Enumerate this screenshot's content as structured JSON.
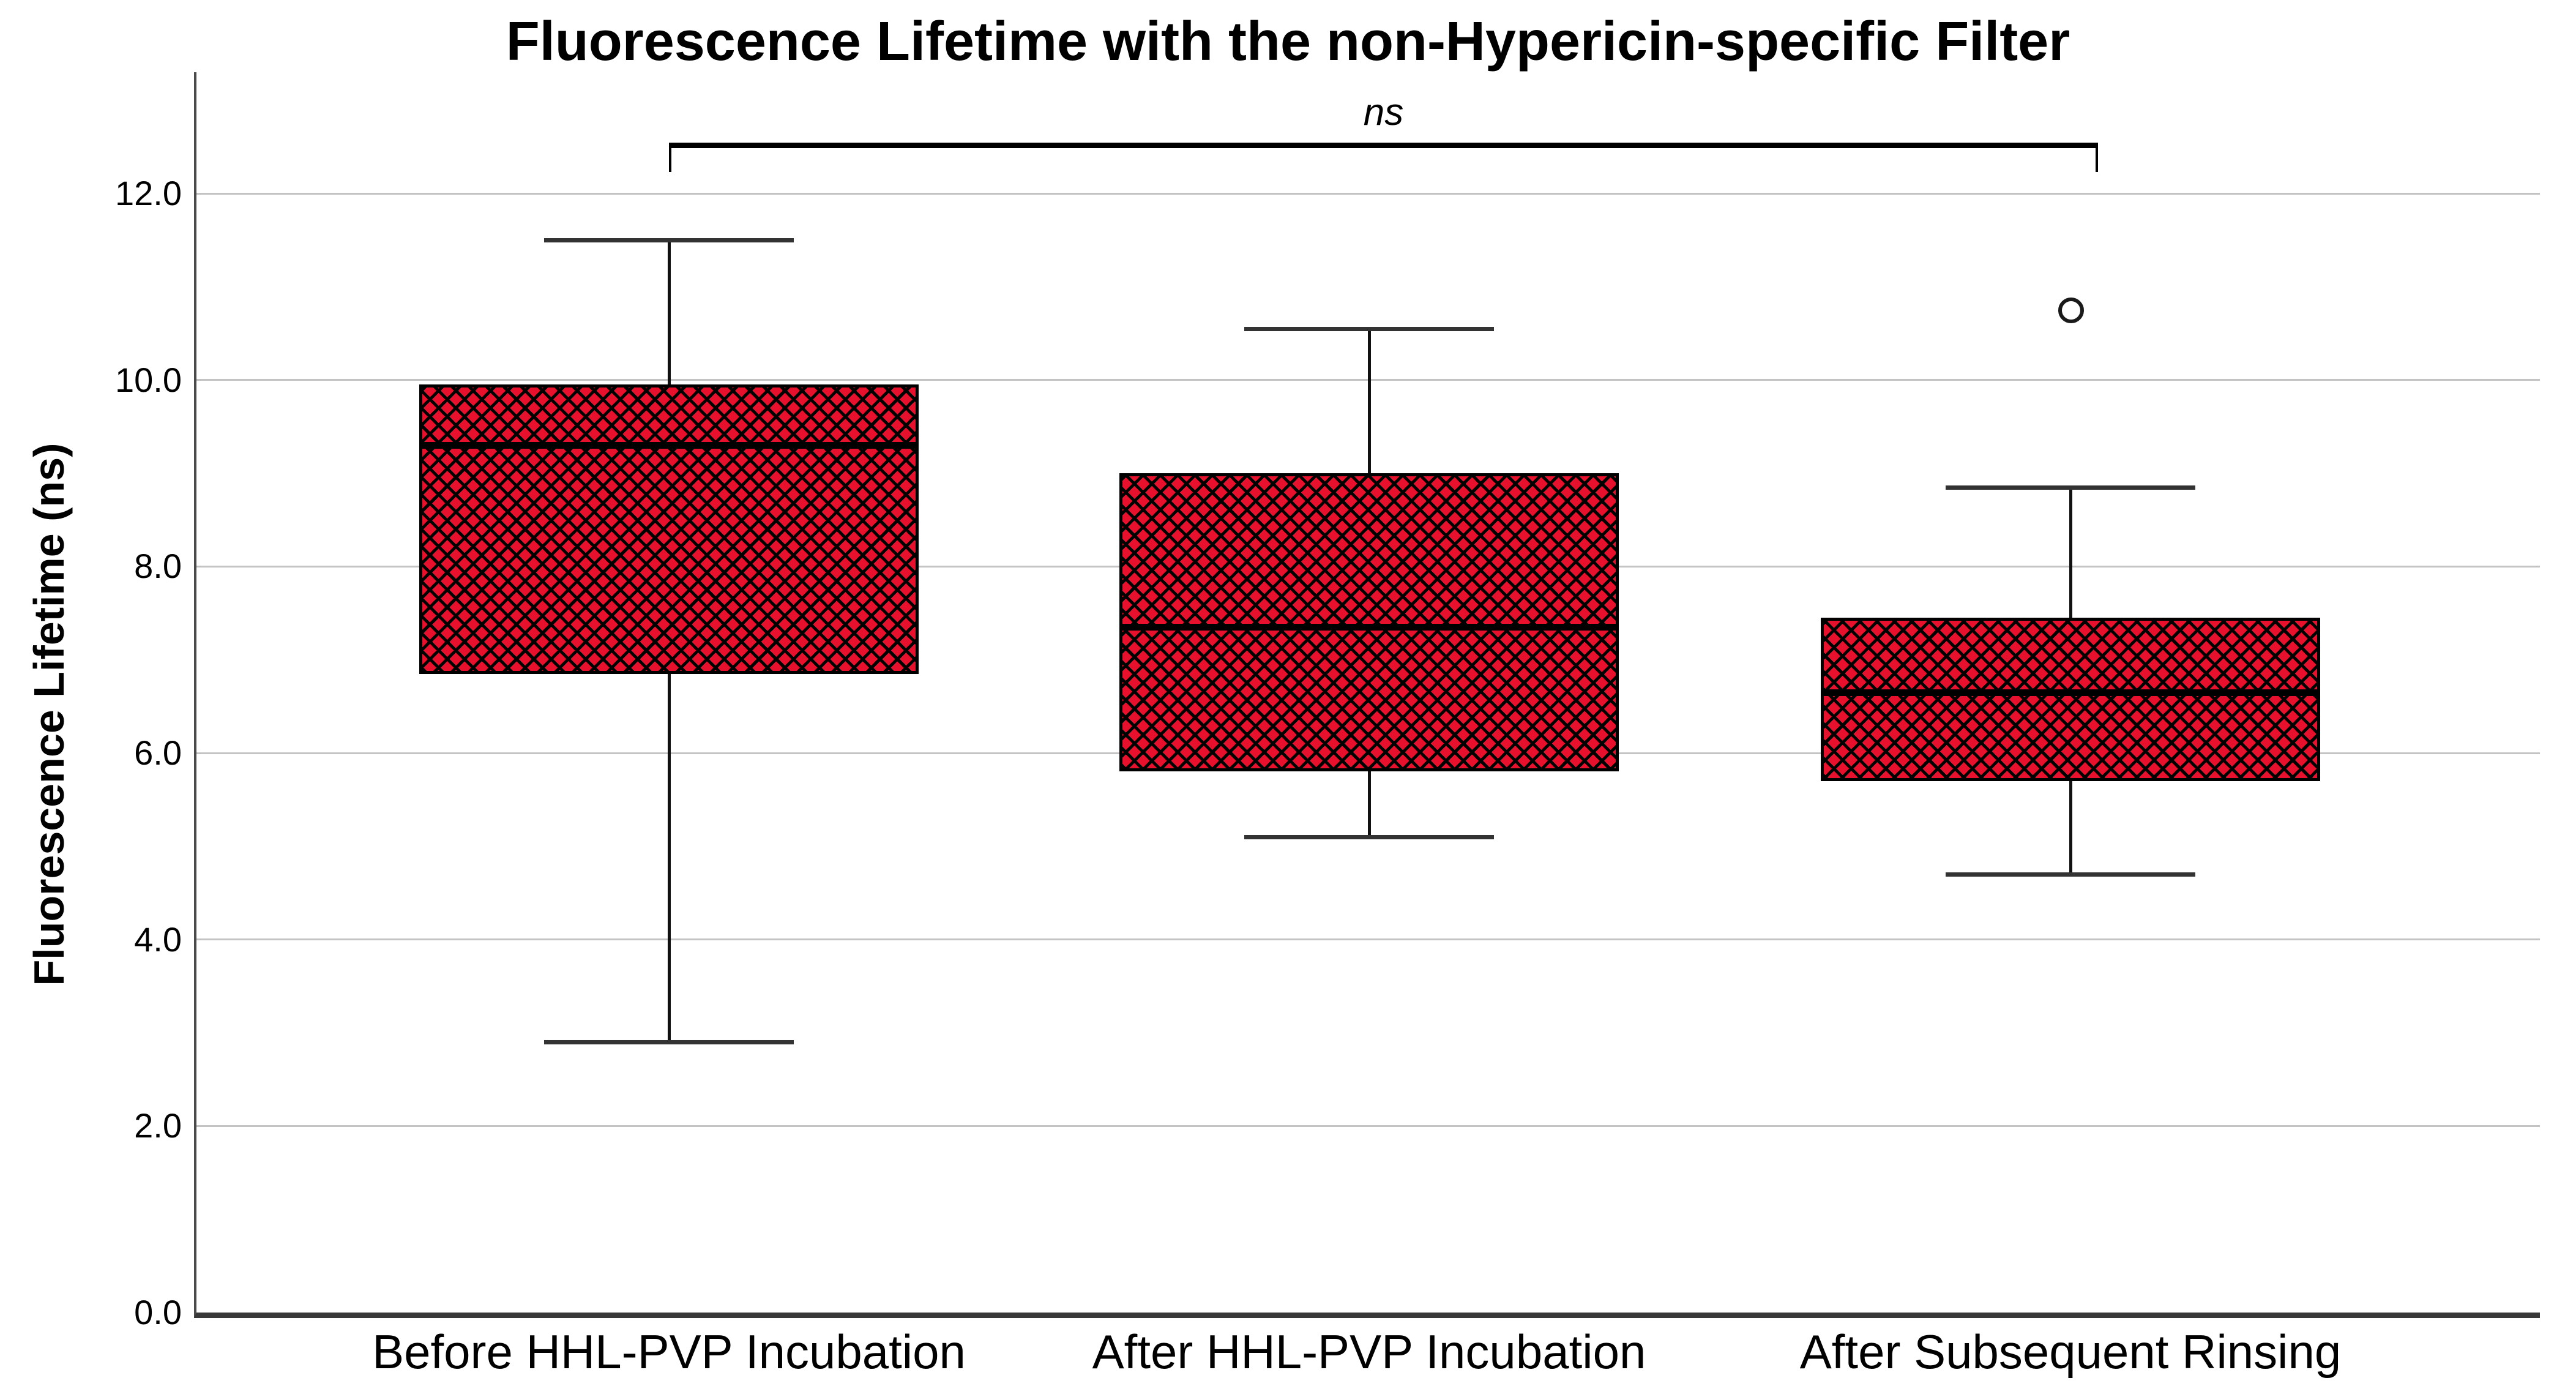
{
  "chart_data": {
    "type": "boxplot",
    "title": "Fluorescence Lifetime with the non-Hypericin-specific Filter",
    "ylabel": "Fluorescence Lifetime (ns)",
    "xlabel": "",
    "ylim": [
      0,
      13.3
    ],
    "yticks": [
      0.0,
      2.0,
      4.0,
      6.0,
      8.0,
      10.0,
      12.0
    ],
    "ytick_labels": [
      "0.0",
      "2.0",
      "4.0",
      "6.0",
      "8.0",
      "10.0",
      "12.0"
    ],
    "grid": "horizontal",
    "legend": "none",
    "categories": [
      "Before HHL-PVP Incubation",
      "After HHL-PVP Incubation",
      "After Subsequent Rinsing"
    ],
    "series": [
      {
        "category": "Before HHL-PVP Incubation",
        "whisker_low": 2.9,
        "q1": 6.85,
        "median": 9.3,
        "q3": 9.95,
        "whisker_high": 11.5,
        "outliers": []
      },
      {
        "category": "After HHL-PVP Incubation",
        "whisker_low": 5.1,
        "q1": 5.8,
        "median": 7.35,
        "q3": 9.0,
        "whisker_high": 10.55,
        "outliers": []
      },
      {
        "category": "After Subsequent Rinsing",
        "whisker_low": 4.7,
        "q1": 5.7,
        "median": 6.65,
        "q3": 7.45,
        "whisker_high": 8.85,
        "outliers": [
          10.75
        ]
      }
    ],
    "annotation": {
      "text": "ns",
      "style": "italic",
      "spans_categories": [
        0,
        2
      ]
    },
    "style": {
      "box_fill": "#e8112d",
      "hatch_color": "#000000",
      "box_border": "#000000",
      "median_color": "#000000",
      "whisker_color": "#111111",
      "cap_color": "#333333",
      "outlier_color": "#1a1a1a",
      "grid_color": "#c3c3c3",
      "axis_color": "#4a4a4a",
      "text_color": "#000000",
      "background": "#ffffff"
    }
  }
}
